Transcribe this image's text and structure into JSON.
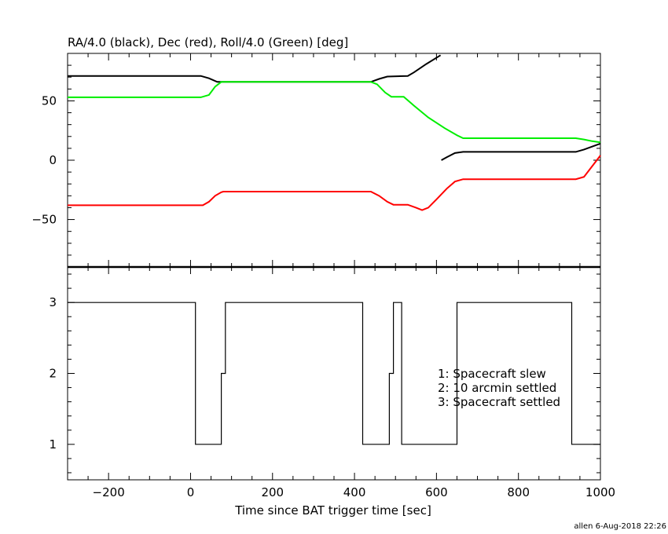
{
  "chart_data": [
    {
      "type": "line",
      "title": "RA/4.0 (black), Dec (red), Roll/4.0 (Green) [deg]",
      "xlim": [
        -300,
        1000
      ],
      "ylim": [
        -90,
        90
      ],
      "yticks_labeled": [
        "50",
        "0",
        "−50"
      ],
      "ytick_values": [
        50,
        0,
        -50
      ],
      "grid": false,
      "series": [
        {
          "color": "#000000",
          "segments": [
            [
              [
                -300,
                71
              ],
              [
                25,
                71
              ],
              [
                45,
                69
              ],
              [
                65,
                66
              ],
              [
                80,
                66
              ],
              [
                360,
                66
              ],
              [
                440,
                66
              ],
              [
                460,
                68.5
              ],
              [
                480,
                70.5
              ],
              [
                530,
                71
              ],
              [
                545,
                74
              ],
              [
                575,
                81
              ],
              [
                610,
                88.5
              ]
            ],
            [
              [
                612,
                0
              ],
              [
                625,
                2.5
              ],
              [
                645,
                6
              ],
              [
                665,
                7
              ],
              [
                940,
                7
              ],
              [
                960,
                9
              ],
              [
                1000,
                14
              ]
            ]
          ]
        },
        {
          "color": "#ff0000",
          "points": [
            [
              -300,
              -38
            ],
            [
              30,
              -38
            ],
            [
              45,
              -35
            ],
            [
              60,
              -30
            ],
            [
              75,
              -27
            ],
            [
              80,
              -26.5
            ],
            [
              360,
              -26.5
            ],
            [
              440,
              -26.5
            ],
            [
              460,
              -30
            ],
            [
              480,
              -35
            ],
            [
              495,
              -37.5
            ],
            [
              530,
              -37.5
            ],
            [
              550,
              -40
            ],
            [
              565,
              -42
            ],
            [
              580,
              -40
            ],
            [
              600,
              -33
            ],
            [
              625,
              -24
            ],
            [
              645,
              -18
            ],
            [
              665,
              -16
            ],
            [
              940,
              -16
            ],
            [
              960,
              -14
            ],
            [
              1000,
              4
            ]
          ]
        },
        {
          "color": "#00ee00",
          "points": [
            [
              -300,
              53
            ],
            [
              25,
              53
            ],
            [
              45,
              55
            ],
            [
              60,
              62
            ],
            [
              75,
              66
            ],
            [
              80,
              66
            ],
            [
              360,
              66
            ],
            [
              440,
              66
            ],
            [
              455,
              64
            ],
            [
              475,
              57
            ],
            [
              490,
              53.5
            ],
            [
              520,
              53.5
            ],
            [
              545,
              46
            ],
            [
              580,
              36
            ],
            [
              620,
              27
            ],
            [
              650,
              21
            ],
            [
              665,
              18.5
            ],
            [
              940,
              18.5
            ],
            [
              960,
              17.5
            ],
            [
              980,
              16
            ],
            [
              1000,
              15
            ]
          ]
        }
      ]
    },
    {
      "type": "line",
      "xlabel": "Time since BAT trigger time [sec]",
      "xlim": [
        -300,
        1000
      ],
      "xtick_values": [
        -200,
        0,
        200,
        400,
        600,
        800,
        1000
      ],
      "xticks_labeled": [
        "−200",
        "0",
        "200",
        "400",
        "600",
        "800",
        "1000"
      ],
      "ylim": [
        0.5,
        3.5
      ],
      "ytick_values": [
        1,
        2,
        3
      ],
      "yticks_labeled": [
        "1",
        "2",
        "3"
      ],
      "series": [
        {
          "color": "#000000",
          "step_points": [
            [
              -300,
              3
            ],
            [
              12,
              3
            ],
            [
              12,
              1
            ],
            [
              75,
              1
            ],
            [
              75,
              2
            ],
            [
              85,
              2
            ],
            [
              85,
              3
            ],
            [
              420,
              3
            ],
            [
              420,
              1
            ],
            [
              485,
              1
            ],
            [
              485,
              2
            ],
            [
              495,
              2
            ],
            [
              495,
              3
            ],
            [
              515,
              3
            ],
            [
              515,
              1
            ],
            [
              650,
              1
            ],
            [
              650,
              3
            ],
            [
              930,
              3
            ],
            [
              930,
              1
            ],
            [
              1000,
              1
            ]
          ]
        }
      ],
      "annotations": [
        "1: Spacecraft slew",
        "2: 10 arcmin settled",
        "3: Spacecraft settled"
      ]
    }
  ],
  "footer": "allen  6-Aug-2018 22:26"
}
